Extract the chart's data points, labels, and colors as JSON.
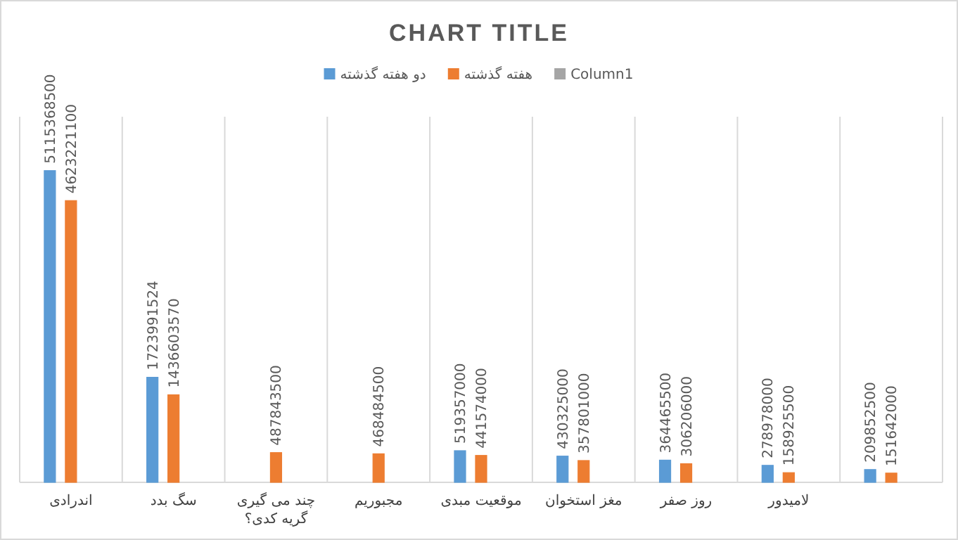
{
  "chart_data": {
    "type": "bar",
    "title": "CHART TITLE",
    "categories": [
      "اندرادی",
      "سگ بدد",
      "چند می گیری گریه کدی؟",
      "مجبوریم",
      "موقعیت مبدی",
      "مغز استخوان",
      "روز صفر",
      "لامیدور",
      null
    ],
    "series": [
      {
        "name": "دو هفته گذشته",
        "color": "#5b9bd5",
        "values": [
          5115368500,
          1723991524,
          null,
          null,
          519357000,
          430325000,
          364465500,
          278978000,
          209852500
        ]
      },
      {
        "name": "هفته گذشته",
        "color": "#ed7d31",
        "values": [
          4623221100,
          1436603570,
          487843500,
          468484500,
          441574000,
          357801000,
          306206000,
          158925500,
          151642000
        ]
      },
      {
        "name": "Column1",
        "color": "#a5a5a5",
        "values": [
          null,
          null,
          null,
          null,
          null,
          null,
          null,
          null,
          null
        ]
      }
    ],
    "ylim": [
      0,
      6000000000
    ],
    "tick_labels": "x",
    "grid": "x",
    "legend": "top",
    "data_labels": true
  }
}
